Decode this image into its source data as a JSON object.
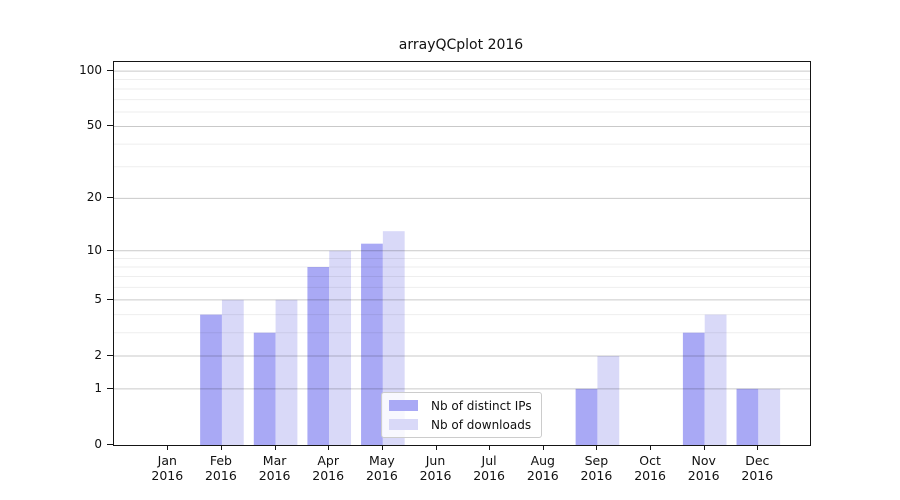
{
  "title": "arrayQCplot 2016",
  "chart_data": {
    "type": "bar",
    "title": "arrayQCplot 2016",
    "categories": [
      "Jan",
      "Feb",
      "Mar",
      "Apr",
      "May",
      "Jun",
      "Jul",
      "Aug",
      "Sep",
      "Oct",
      "Nov",
      "Dec"
    ],
    "category_year": "2016",
    "series": [
      {
        "name": "Nb of distinct IPs",
        "color": "#a9a9f5",
        "values": [
          0,
          4,
          3,
          8,
          11,
          0,
          0,
          0,
          1,
          0,
          3,
          1
        ]
      },
      {
        "name": "Nb of downloads",
        "color": "#d9d9f8",
        "values": [
          0,
          5,
          5,
          10,
          13,
          0,
          0,
          0,
          2,
          0,
          4,
          1
        ]
      }
    ],
    "y_axis": {
      "scale": "log1p",
      "ticks": [
        0,
        1,
        2,
        5,
        10,
        20,
        50,
        100
      ],
      "minor_ticks": [
        3,
        4,
        6,
        7,
        8,
        9,
        30,
        40,
        60,
        70,
        80,
        90
      ],
      "max": 112
    },
    "x_axis": {
      "tick_labels_two_lines": true
    },
    "grid": true,
    "legend_position": "lower-center",
    "frame_color": "#151515",
    "major_grid_color": "rgba(0,0,0,0.21)",
    "minor_grid_color": "rgba(0,0,0,0.065)"
  }
}
